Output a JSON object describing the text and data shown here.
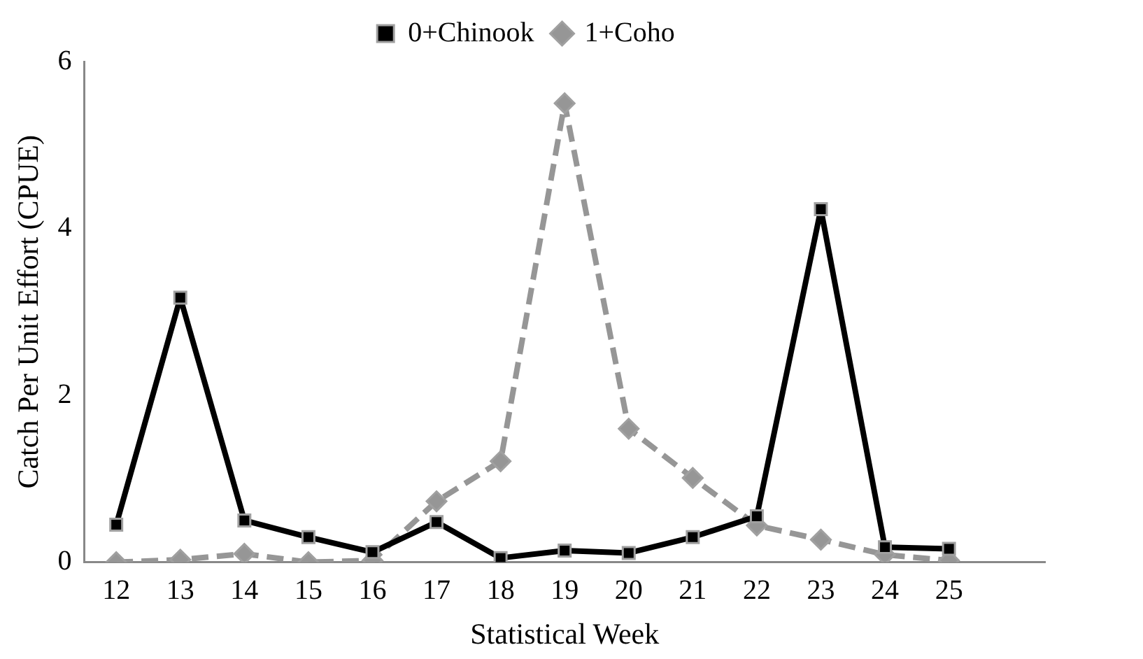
{
  "chart_data": {
    "type": "line",
    "xlabel": "Statistical Week",
    "ylabel": "Catch Per Unit Effort (CPUE)",
    "categories": [
      "12",
      "13",
      "14",
      "15",
      "16",
      "17",
      "18",
      "19",
      "20",
      "21",
      "22",
      "23",
      "24",
      "25",
      null
    ],
    "series": [
      {
        "name": "0+Chinook",
        "color": "#000000",
        "marker": "square",
        "line_style": "solid",
        "values": [
          0.45,
          3.17,
          0.5,
          0.3,
          0.12,
          0.48,
          0.05,
          0.14,
          0.11,
          0.3,
          0.55,
          4.23,
          0.18,
          0.16,
          null
        ]
      },
      {
        "name": "1+Coho",
        "color": "#969696",
        "marker": "diamond",
        "line_style": "dashed",
        "values": [
          0,
          0.03,
          0.1,
          0,
          0.02,
          0.73,
          1.21,
          5.5,
          1.6,
          1.01,
          0.44,
          0.27,
          0.09,
          0.02,
          null
        ]
      }
    ],
    "ylim": [
      0,
      6
    ],
    "yticks": [
      0,
      2,
      4,
      6
    ],
    "grid": false,
    "legend": "top"
  }
}
